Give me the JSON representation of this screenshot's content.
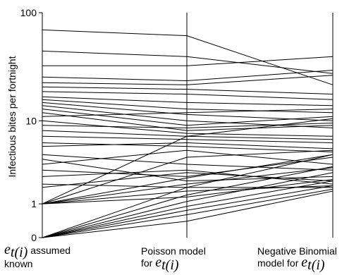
{
  "chart_data": {
    "type": "line",
    "ylabel": "Infectious bites per fortnight",
    "yscale": "log1p",
    "yticks": [
      0,
      1,
      10,
      100
    ],
    "ylim": [
      0,
      100
    ],
    "categories": [
      {
        "id": "known",
        "math": "e",
        "sub": "t(i)",
        "text_after": " assumed",
        "line2": "known"
      },
      {
        "id": "poisson",
        "line1": "Poisson model",
        "line2_text": "for ",
        "math": "e",
        "sub": "t(i)"
      },
      {
        "id": "negbin",
        "line1": "Negative Binomial",
        "line2_text": "model for ",
        "math": "e",
        "sub": "t(i)"
      }
    ],
    "series": [
      {
        "values": [
          70,
          62,
          22
        ]
      },
      {
        "values": [
          45,
          40,
          28
        ]
      },
      {
        "values": [
          33,
          33,
          40
        ]
      },
      {
        "values": [
          26,
          24,
          30
        ]
      },
      {
        "values": [
          23,
          22,
          27
        ]
      },
      {
        "values": [
          21,
          20,
          18
        ]
      },
      {
        "values": [
          19,
          18,
          16
        ]
      },
      {
        "values": [
          17,
          15,
          14
        ]
      },
      {
        "values": [
          16,
          13,
          12
        ]
      },
      {
        "values": [
          15,
          11.5,
          10
        ]
      },
      {
        "values": [
          14,
          10,
          8.5
        ]
      },
      {
        "values": [
          13,
          9,
          11
        ]
      },
      {
        "values": [
          12,
          8,
          9
        ]
      },
      {
        "values": [
          11,
          12,
          13
        ]
      },
      {
        "values": [
          10,
          7.5,
          7
        ]
      },
      {
        "values": [
          9,
          8.5,
          9.5
        ]
      },
      {
        "values": [
          8,
          7,
          10.5
        ]
      },
      {
        "values": [
          7,
          6.5,
          6
        ]
      },
      {
        "values": [
          6,
          5.5,
          4.8
        ]
      },
      {
        "values": [
          5.5,
          6,
          5.2
        ]
      },
      {
        "values": [
          4.5,
          3.5,
          3
        ]
      },
      {
        "values": [
          4,
          2.2,
          2.5
        ]
      },
      {
        "values": [
          3.5,
          5,
          3.5
        ]
      },
      {
        "values": [
          3,
          2.5,
          4.2
        ]
      },
      {
        "values": [
          2.5,
          3,
          2
        ]
      },
      {
        "values": [
          2,
          1.8,
          1.8
        ]
      },
      {
        "values": [
          1.8,
          2.8,
          2.2
        ]
      },
      {
        "values": [
          1,
          2.4,
          4.5
        ]
      },
      {
        "values": [
          1,
          2,
          3.2
        ]
      },
      {
        "values": [
          1,
          1.6,
          1.9
        ]
      },
      {
        "values": [
          1,
          1.3,
          2.3
        ]
      },
      {
        "values": [
          1,
          7,
          6.5
        ]
      },
      {
        "values": [
          1,
          4.2,
          5
        ]
      },
      {
        "values": [
          0,
          1.8,
          4.5
        ]
      },
      {
        "values": [
          0,
          1.4,
          3.3
        ]
      },
      {
        "values": [
          0,
          1.1,
          2.8
        ]
      },
      {
        "values": [
          0,
          0.9,
          2.2
        ]
      },
      {
        "values": [
          0,
          0.75,
          1.9
        ]
      },
      {
        "values": [
          0,
          0.6,
          1.7
        ]
      },
      {
        "values": [
          0,
          0.4,
          1.6
        ]
      }
    ]
  }
}
